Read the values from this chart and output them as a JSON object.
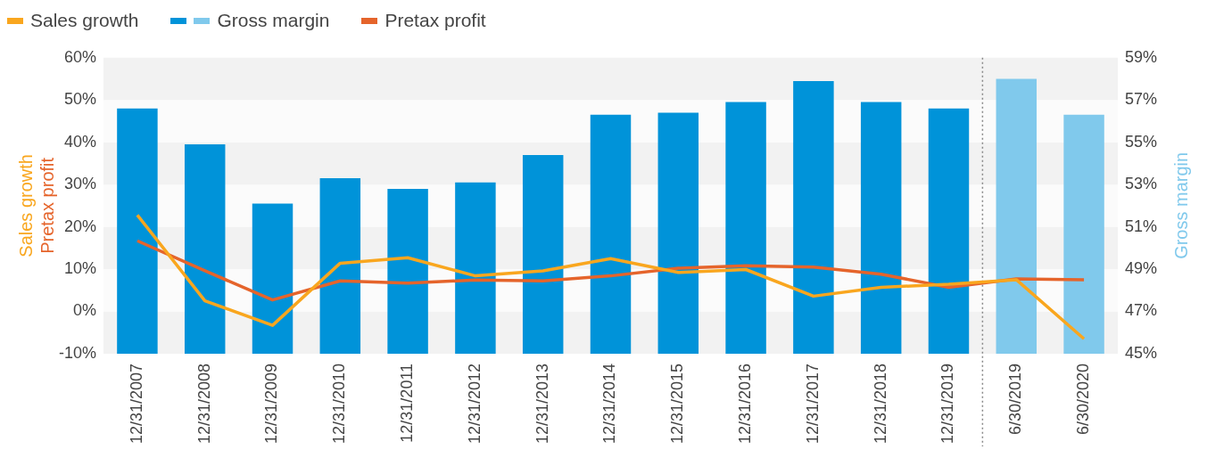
{
  "chart_data": {
    "type": "bar",
    "categories": [
      "12/31/2007",
      "12/31/2008",
      "12/31/2009",
      "12/31/2010",
      "12/31/2011",
      "12/31/2012",
      "12/31/2013",
      "12/31/2014",
      "12/31/2015",
      "12/31/2016",
      "12/31/2017",
      "12/31/2018",
      "12/31/2019",
      "6/30/2019",
      "6/30/2020"
    ],
    "series": [
      {
        "name": "Sales growth",
        "type": "line",
        "color": "#f9a61e",
        "values": [
          22.8,
          2.5,
          -3.3,
          11.4,
          12.7,
          8.4,
          9.6,
          12.5,
          9.2,
          9.9,
          3.6,
          5.7,
          6.4,
          7.5,
          -6.5
        ]
      },
      {
        "name": "Gross margin",
        "axis": "y2",
        "colors": [
          "#0093d9",
          "#0093d9",
          "#0093d9",
          "#0093d9",
          "#0093d9",
          "#0093d9",
          "#0093d9",
          "#0093d9",
          "#0093d9",
          "#0093d9",
          "#0093d9",
          "#0093d9",
          "#0093d9",
          "#80c9ec",
          "#80c9ec"
        ],
        "values": [
          56.6,
          54.9,
          52.1,
          53.3,
          52.8,
          53.1,
          54.4,
          56.3,
          56.4,
          56.9,
          57.9,
          56.9,
          56.6,
          58.0,
          56.3
        ]
      },
      {
        "name": "Pretax profit",
        "type": "line",
        "color": "#e5642b",
        "values": [
          16.7,
          9.6,
          2.7,
          7.2,
          6.7,
          7.4,
          7.2,
          8.4,
          10.2,
          10.8,
          10.5,
          8.8,
          5.7,
          7.7,
          7.5
        ]
      }
    ],
    "ylabel": [
      "Sales growth",
      "Pretax profit"
    ],
    "y2label": "Gross margin",
    "ylim": [
      -10,
      60
    ],
    "yticks": [
      {
        "value": -10,
        "label": "-10%"
      },
      {
        "value": 0,
        "label": "0%"
      },
      {
        "value": 10,
        "label": "10%"
      },
      {
        "value": 20,
        "label": "20%"
      },
      {
        "value": 30,
        "label": "30%"
      },
      {
        "value": 40,
        "label": "40%"
      },
      {
        "value": 50,
        "label": "50%"
      },
      {
        "value": 60,
        "label": "60%"
      }
    ],
    "y2lim": [
      45,
      59
    ],
    "y2ticks": [
      {
        "value": 45,
        "label": "45%"
      },
      {
        "value": 47,
        "label": "47%"
      },
      {
        "value": 49,
        "label": "49%"
      },
      {
        "value": 51,
        "label": "51%"
      },
      {
        "value": 53,
        "label": "53%"
      },
      {
        "value": 55,
        "label": "55%"
      },
      {
        "value": 57,
        "label": "57%"
      },
      {
        "value": 59,
        "label": "59%"
      }
    ],
    "legend": "top left",
    "marker": "none",
    "line_style": "solid"
  }
}
